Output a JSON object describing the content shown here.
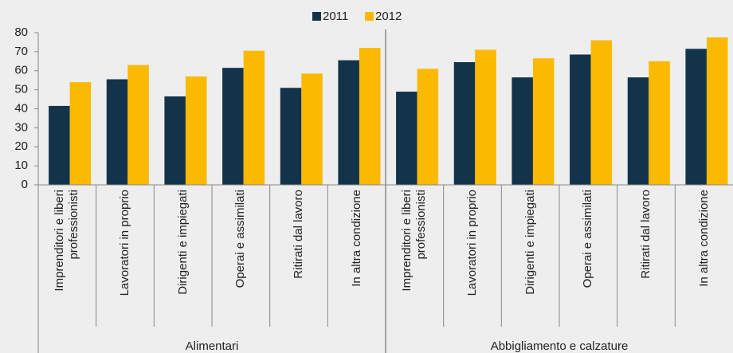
{
  "chart_data": {
    "type": "bar",
    "groups": [
      "Alimentari",
      "Abbigliamento e calzature"
    ],
    "categories": [
      "Imprenditori e liberi professionisti",
      "Lavoratori in proprio",
      "Dirigenti e impiegati",
      "Operai e assimilati",
      "Ritirati dal lavoro",
      "In altra condizione",
      "Imprenditori e liberi professionisti",
      "Lavoratori in proprio",
      "Dirigenti e impiegati",
      "Operai e assimilati",
      "Ritirati dal lavoro",
      "In altra condizione"
    ],
    "series": [
      {
        "name": "2011",
        "color": "#13334a",
        "values": [
          41.5,
          55.5,
          46.5,
          61.5,
          51,
          65.5,
          49,
          64.5,
          56.5,
          68.5,
          56.5,
          71.5
        ]
      },
      {
        "name": "2012",
        "color": "#fbb900",
        "values": [
          54,
          63,
          57,
          70.5,
          58.5,
          72,
          61,
          71,
          66.5,
          76,
          65,
          77.5
        ]
      }
    ],
    "ylim": [
      0,
      80
    ],
    "yticks": [
      0,
      10,
      20,
      30,
      40,
      50,
      60,
      70,
      80
    ],
    "grid": false,
    "legend": "top"
  }
}
